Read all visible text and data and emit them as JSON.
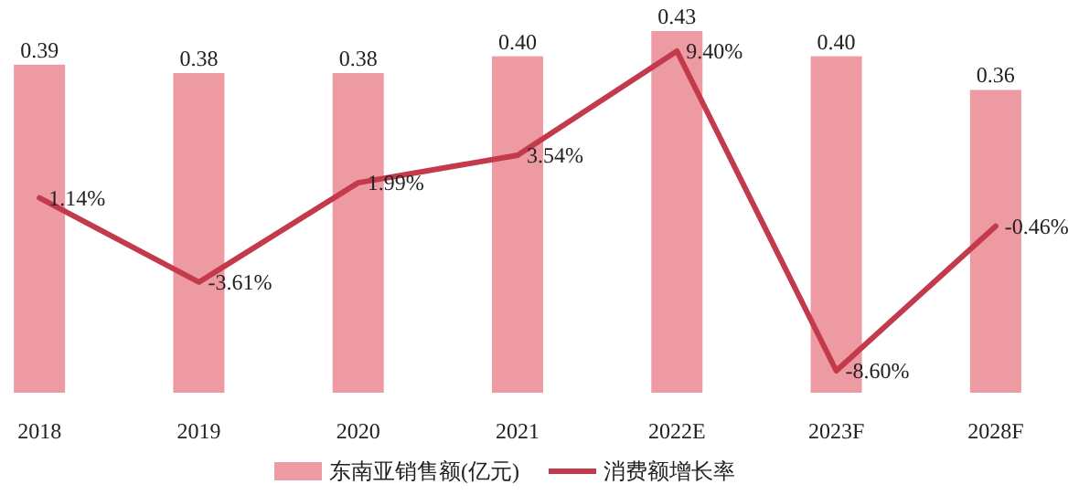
{
  "chart_data": {
    "type": "bar",
    "categories": [
      "2018",
      "2019",
      "2020",
      "2021",
      "2022E",
      "2023F",
      "2028F"
    ],
    "series": [
      {
        "name": "东南亚销售额(亿元)",
        "color": "#ee9aa2",
        "values": [
          0.39,
          0.38,
          0.38,
          0.4,
          0.43,
          0.4,
          0.36
        ],
        "value_labels": [
          "0.39",
          "0.38",
          "0.38",
          "0.40",
          "0.43",
          "0.40",
          "0.36"
        ]
      },
      {
        "name": "消费额增长率",
        "type": "line",
        "axis": "y2",
        "color": "#c23a4c",
        "values": [
          1.14,
          -3.61,
          1.99,
          3.54,
          9.4,
          -8.6,
          -0.46
        ],
        "value_labels": [
          "1.14%",
          "-3.61%",
          "1.99%",
          "3.54%",
          "9.40%",
          "-8.60%",
          "-0.46%"
        ]
      }
    ],
    "tick_labels": "x",
    "legend": "bottom",
    "marker": "none",
    "line_style": "solid"
  }
}
